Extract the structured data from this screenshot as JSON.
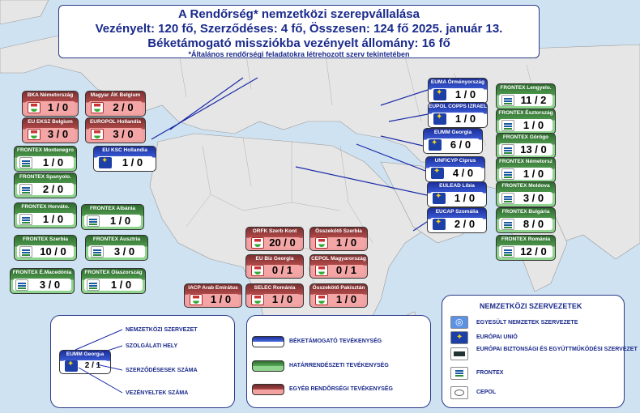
{
  "header": {
    "title": "A Rendőrség* nemzetközi szerepvállalása",
    "line2": "Vezényelt: 120 fő, Szerződéses: 4 fő, Összesen: 124 fő     2025. január 13.",
    "line3": "Béketámogató missziókba vezényelt állomány: 16 fő",
    "footnote": "*Általános rendőrségi feladatokra létrehozott szerv tekintetében"
  },
  "missions": [
    {
      "label": "BKA Németország",
      "value": "1 / 0",
      "type": "red",
      "icon": "police-icon"
    },
    {
      "label": "Magyar ÁK Belgium",
      "value": "2 / 0",
      "type": "red",
      "icon": "police-icon"
    },
    {
      "label": "EU EKSZ Belgium",
      "value": "3 / 0",
      "type": "red",
      "icon": "police-icon"
    },
    {
      "label": "EUROPOL Hollandia",
      "value": "3 / 0",
      "type": "red",
      "icon": "police-icon"
    },
    {
      "label": "FRONTEX Montenegro",
      "value": "1 / 0",
      "type": "green",
      "icon": "frontex-icon"
    },
    {
      "label": "EU KSC Hollandia",
      "value": "1 / 0",
      "type": "blue",
      "icon": "eu-flag-icon"
    },
    {
      "label": "FRONTEX Spanyolo.",
      "value": "2 / 0",
      "type": "green",
      "icon": "frontex-icon"
    },
    {
      "label": "FRONTEX Horváto.",
      "value": "1 / 0",
      "type": "green",
      "icon": "frontex-icon"
    },
    {
      "label": "FRONTEX Albánia",
      "value": "1 / 0",
      "type": "green",
      "icon": "frontex-icon"
    },
    {
      "label": "FRONTEX Szerbia",
      "value": "10 / 0",
      "type": "green",
      "icon": "frontex-icon"
    },
    {
      "label": "FRONTEX Ausztria",
      "value": "3 / 0",
      "type": "green",
      "icon": "frontex-icon"
    },
    {
      "label": "FRONTEX É.Macedónia",
      "value": "3 / 0",
      "type": "green",
      "icon": "frontex-icon"
    },
    {
      "label": "FRONTEX Olaszország",
      "value": "1 / 0",
      "type": "green",
      "icon": "frontex-icon"
    },
    {
      "label": "EUMA Örményország",
      "value": "1 / 0",
      "type": "blue",
      "icon": "eu-flag-icon"
    },
    {
      "label": "EUPOL COPPS IZRAEL",
      "value": "1 / 0",
      "type": "blue",
      "icon": "eu-flag-icon"
    },
    {
      "label": "EUMM Georgia",
      "value": "6 / 0",
      "type": "blue",
      "icon": "eu-flag-icon"
    },
    {
      "label": "UNFICYP Ciprus",
      "value": "4 / 0",
      "type": "blue",
      "icon": "un-icon"
    },
    {
      "label": "EULEAD Líbia",
      "value": "1 / 0",
      "type": "blue",
      "icon": "eu-flag-icon"
    },
    {
      "label": "EUCAP Szomália",
      "value": "2 / 0",
      "type": "blue",
      "icon": "eu-flag-icon"
    },
    {
      "label": "FRONTEX Lengyelo.",
      "value": "11 / 2",
      "type": "green",
      "icon": "frontex-icon"
    },
    {
      "label": "FRONTEX Észtország",
      "value": "1 / 0",
      "type": "green",
      "icon": "frontex-icon"
    },
    {
      "label": "FRONTEX Görögo",
      "value": "13 / 0",
      "type": "green",
      "icon": "frontex-icon"
    },
    {
      "label": "FRONTEX Németorsz",
      "value": "1 / 0",
      "type": "green",
      "icon": "frontex-icon"
    },
    {
      "label": "FRONTEX Moldova",
      "value": "3 / 0",
      "type": "green",
      "icon": "frontex-icon"
    },
    {
      "label": "FRONTEX Bulgária",
      "value": "8 / 0",
      "type": "green",
      "icon": "frontex-icon"
    },
    {
      "label": "FRONTEX Románia",
      "value": "12 / 0",
      "type": "green",
      "icon": "frontex-icon"
    },
    {
      "label": "ORFK Szerb Kont",
      "value": "20 / 0",
      "type": "red",
      "icon": "police-icon"
    },
    {
      "label": "Összekötő Szerbia",
      "value": "1 / 0",
      "type": "red",
      "icon": "police-icon"
    },
    {
      "label": "EU Biz Georgia",
      "value": "0 / 1",
      "type": "red",
      "icon": "police-icon"
    },
    {
      "label": "CEPOL Magyarország",
      "value": "0 / 1",
      "type": "red",
      "icon": "police-icon"
    },
    {
      "label": "IACP Arab Emirátus",
      "value": "1 / 0",
      "type": "red",
      "icon": "police-icon"
    },
    {
      "label": "SELEC Románia",
      "value": "1 / 0",
      "type": "red",
      "icon": "police-icon"
    },
    {
      "label": "Összekötő Pakisztán",
      "value": "1 / 0",
      "type": "red",
      "icon": "police-icon"
    }
  ],
  "key": {
    "org_label": "NEMZETKÖZI SZERVEZET",
    "place_label": "SZOLGÁLATI HELY",
    "contract_label": "SZERZŐDÉSESEK SZÁMA",
    "seconded_label": "VEZÉNYELTEK SZÁMA",
    "sample_title": "EUMM Georgia",
    "sample_value": "2 / 1"
  },
  "types": {
    "blue": "BÉKETÁMOGATÓ TEVÉKENYSÉG",
    "green": "HATÁRRENDÉSZETI TEVÉKENYSÉG",
    "red": "EGYÉB RENDŐRSÉGI TEVÉKENYSÉG"
  },
  "orgs": {
    "title": "NEMZETKÖZI SZERVEZETEK",
    "items": [
      {
        "label": "EGYESÜLT NEMZETEK SZERVEZETE",
        "icon": "un-icon"
      },
      {
        "label": "EURÓPAI UNIÓ",
        "icon": "eu-flag-icon"
      },
      {
        "label": "EURÓPAI BIZTONSÁGI ÉS EGYÜTTMŰKÖDÉSI SZERVEZET",
        "icon": "osce-icon"
      },
      {
        "label": "FRONTEX",
        "icon": "frontex-icon"
      },
      {
        "label": "CEPOL",
        "icon": "cepol-icon"
      }
    ]
  },
  "colors": {
    "blue": "#1b2f9a",
    "green": "#4f9a4f",
    "red": "#b24a4a",
    "title": "#1a2a8c",
    "sea": "#cfe2f1",
    "land": "#e8e8e8"
  }
}
